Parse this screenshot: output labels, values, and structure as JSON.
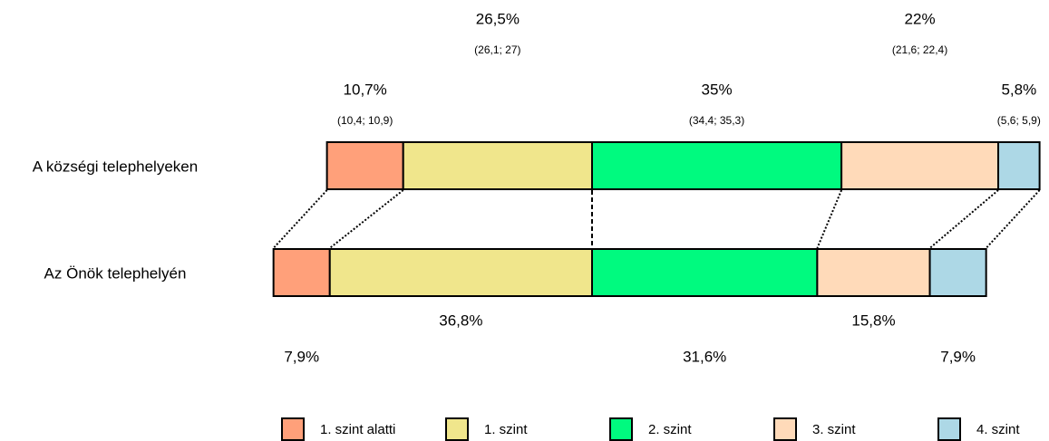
{
  "chart_data": {
    "type": "stacked_bar",
    "categories": [
      "A községi telephelyeken",
      "Az Önök telephelyén"
    ],
    "series": [
      {
        "name": "1. szint alatti",
        "color": "#ffa07a",
        "values": [
          10.7,
          7.9
        ],
        "value_labels": [
          "10,7%",
          "7,9%"
        ],
        "interval_labels": [
          "(10,4; 10,9)",
          null
        ]
      },
      {
        "name": "1. szint",
        "color": "#f0e68c",
        "values": [
          26.5,
          36.8
        ],
        "value_labels": [
          "26,5%",
          "36,8%"
        ],
        "interval_labels": [
          "(26,1; 27)",
          null
        ]
      },
      {
        "name": "2. szint",
        "color": "#00fa7f",
        "values": [
          35,
          31.6
        ],
        "value_labels": [
          "35%",
          "31,6%"
        ],
        "interval_labels": [
          "(34,4; 35,3)",
          null
        ]
      },
      {
        "name": "3. szint",
        "color": "#ffdab9",
        "values": [
          22,
          15.8
        ],
        "value_labels": [
          "22%",
          "15,8%"
        ],
        "interval_labels": [
          "(21,6; 22,4)",
          null
        ]
      },
      {
        "name": "4. szint",
        "color": "#add8e6",
        "values": [
          5.8,
          7.9
        ],
        "value_labels": [
          "5,8%",
          "7,9%"
        ],
        "interval_labels": [
          "(5,6; 5,9)",
          null
        ]
      }
    ]
  }
}
